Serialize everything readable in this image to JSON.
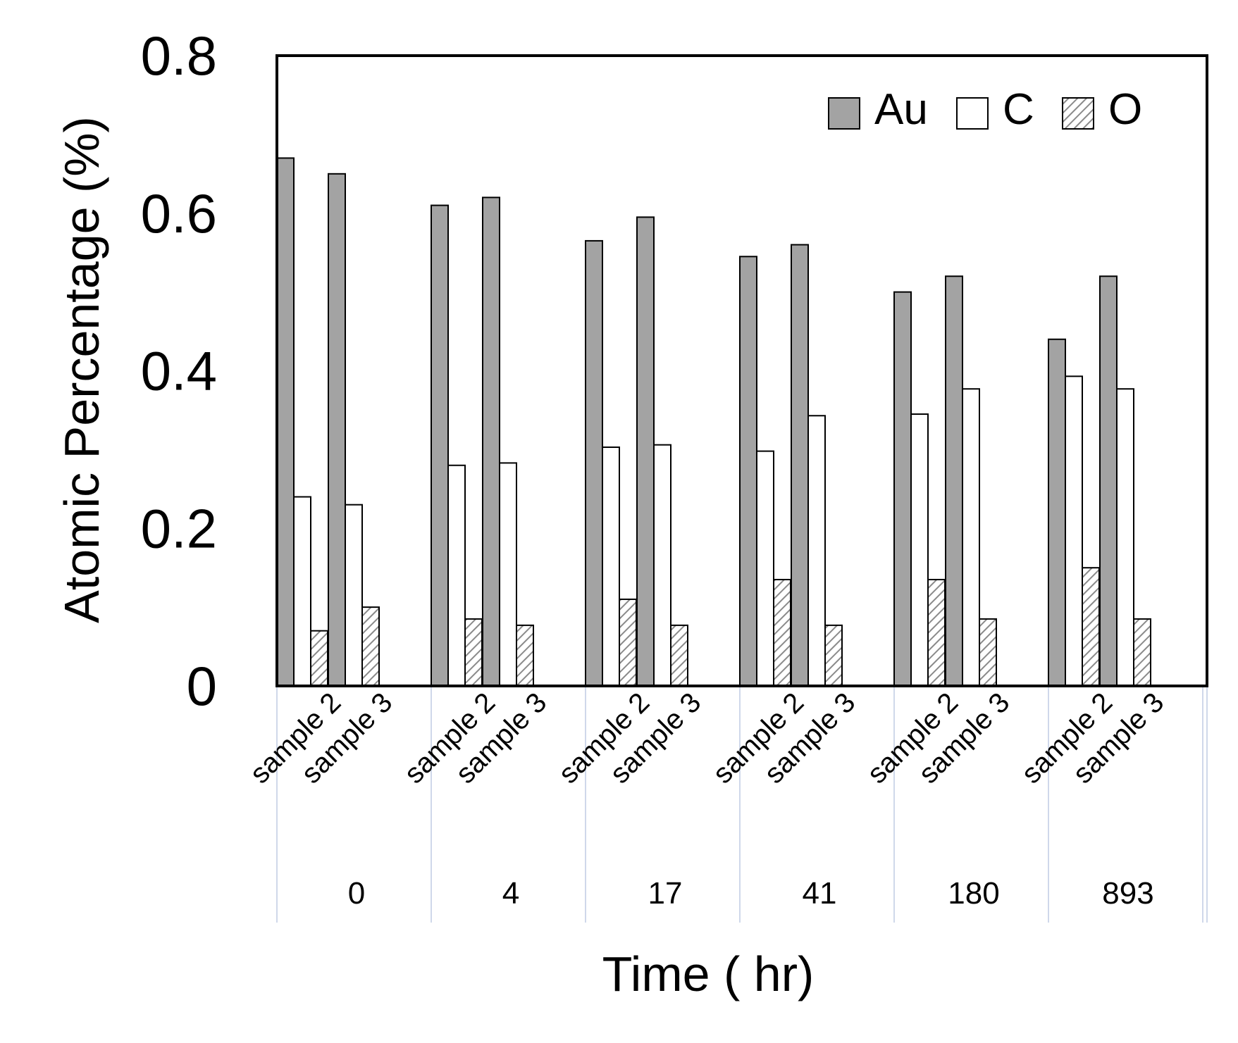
{
  "chart_data": {
    "type": "bar",
    "title": "",
    "ylabel": "Atomic Percentage (%)",
    "xlabel": "Time ( hr)",
    "ylim": [
      0,
      0.8
    ],
    "yticks": [
      "0",
      "0.2",
      "0.4",
      "0.6",
      "0.8"
    ],
    "ytick_values": [
      0,
      0.2,
      0.4,
      0.6,
      0.8
    ],
    "groups": [
      "0",
      "4",
      "17",
      "41",
      "180",
      "893"
    ],
    "samples": [
      "sample 2",
      "sample 3"
    ],
    "legend_position": "top-right",
    "series": [
      {
        "name": "Au",
        "color": "#a3a3a3",
        "pattern": "solid",
        "values": [
          0.67,
          0.65,
          0.61,
          0.62,
          0.565,
          0.595,
          0.545,
          0.56,
          0.5,
          0.52,
          0.44,
          0.52
        ]
      },
      {
        "name": "C",
        "color": "#ffffff",
        "pattern": "solid",
        "values": [
          0.24,
          0.23,
          0.28,
          0.283,
          0.303,
          0.306,
          0.298,
          0.343,
          0.345,
          0.377,
          0.393,
          0.377
        ]
      },
      {
        "name": "O",
        "color": "#d9d9d9",
        "pattern": "hatch",
        "values": [
          0.07,
          0.1,
          0.085,
          0.077,
          0.11,
          0.077,
          0.135,
          0.077,
          0.135,
          0.085,
          0.15,
          0.085
        ]
      }
    ]
  }
}
